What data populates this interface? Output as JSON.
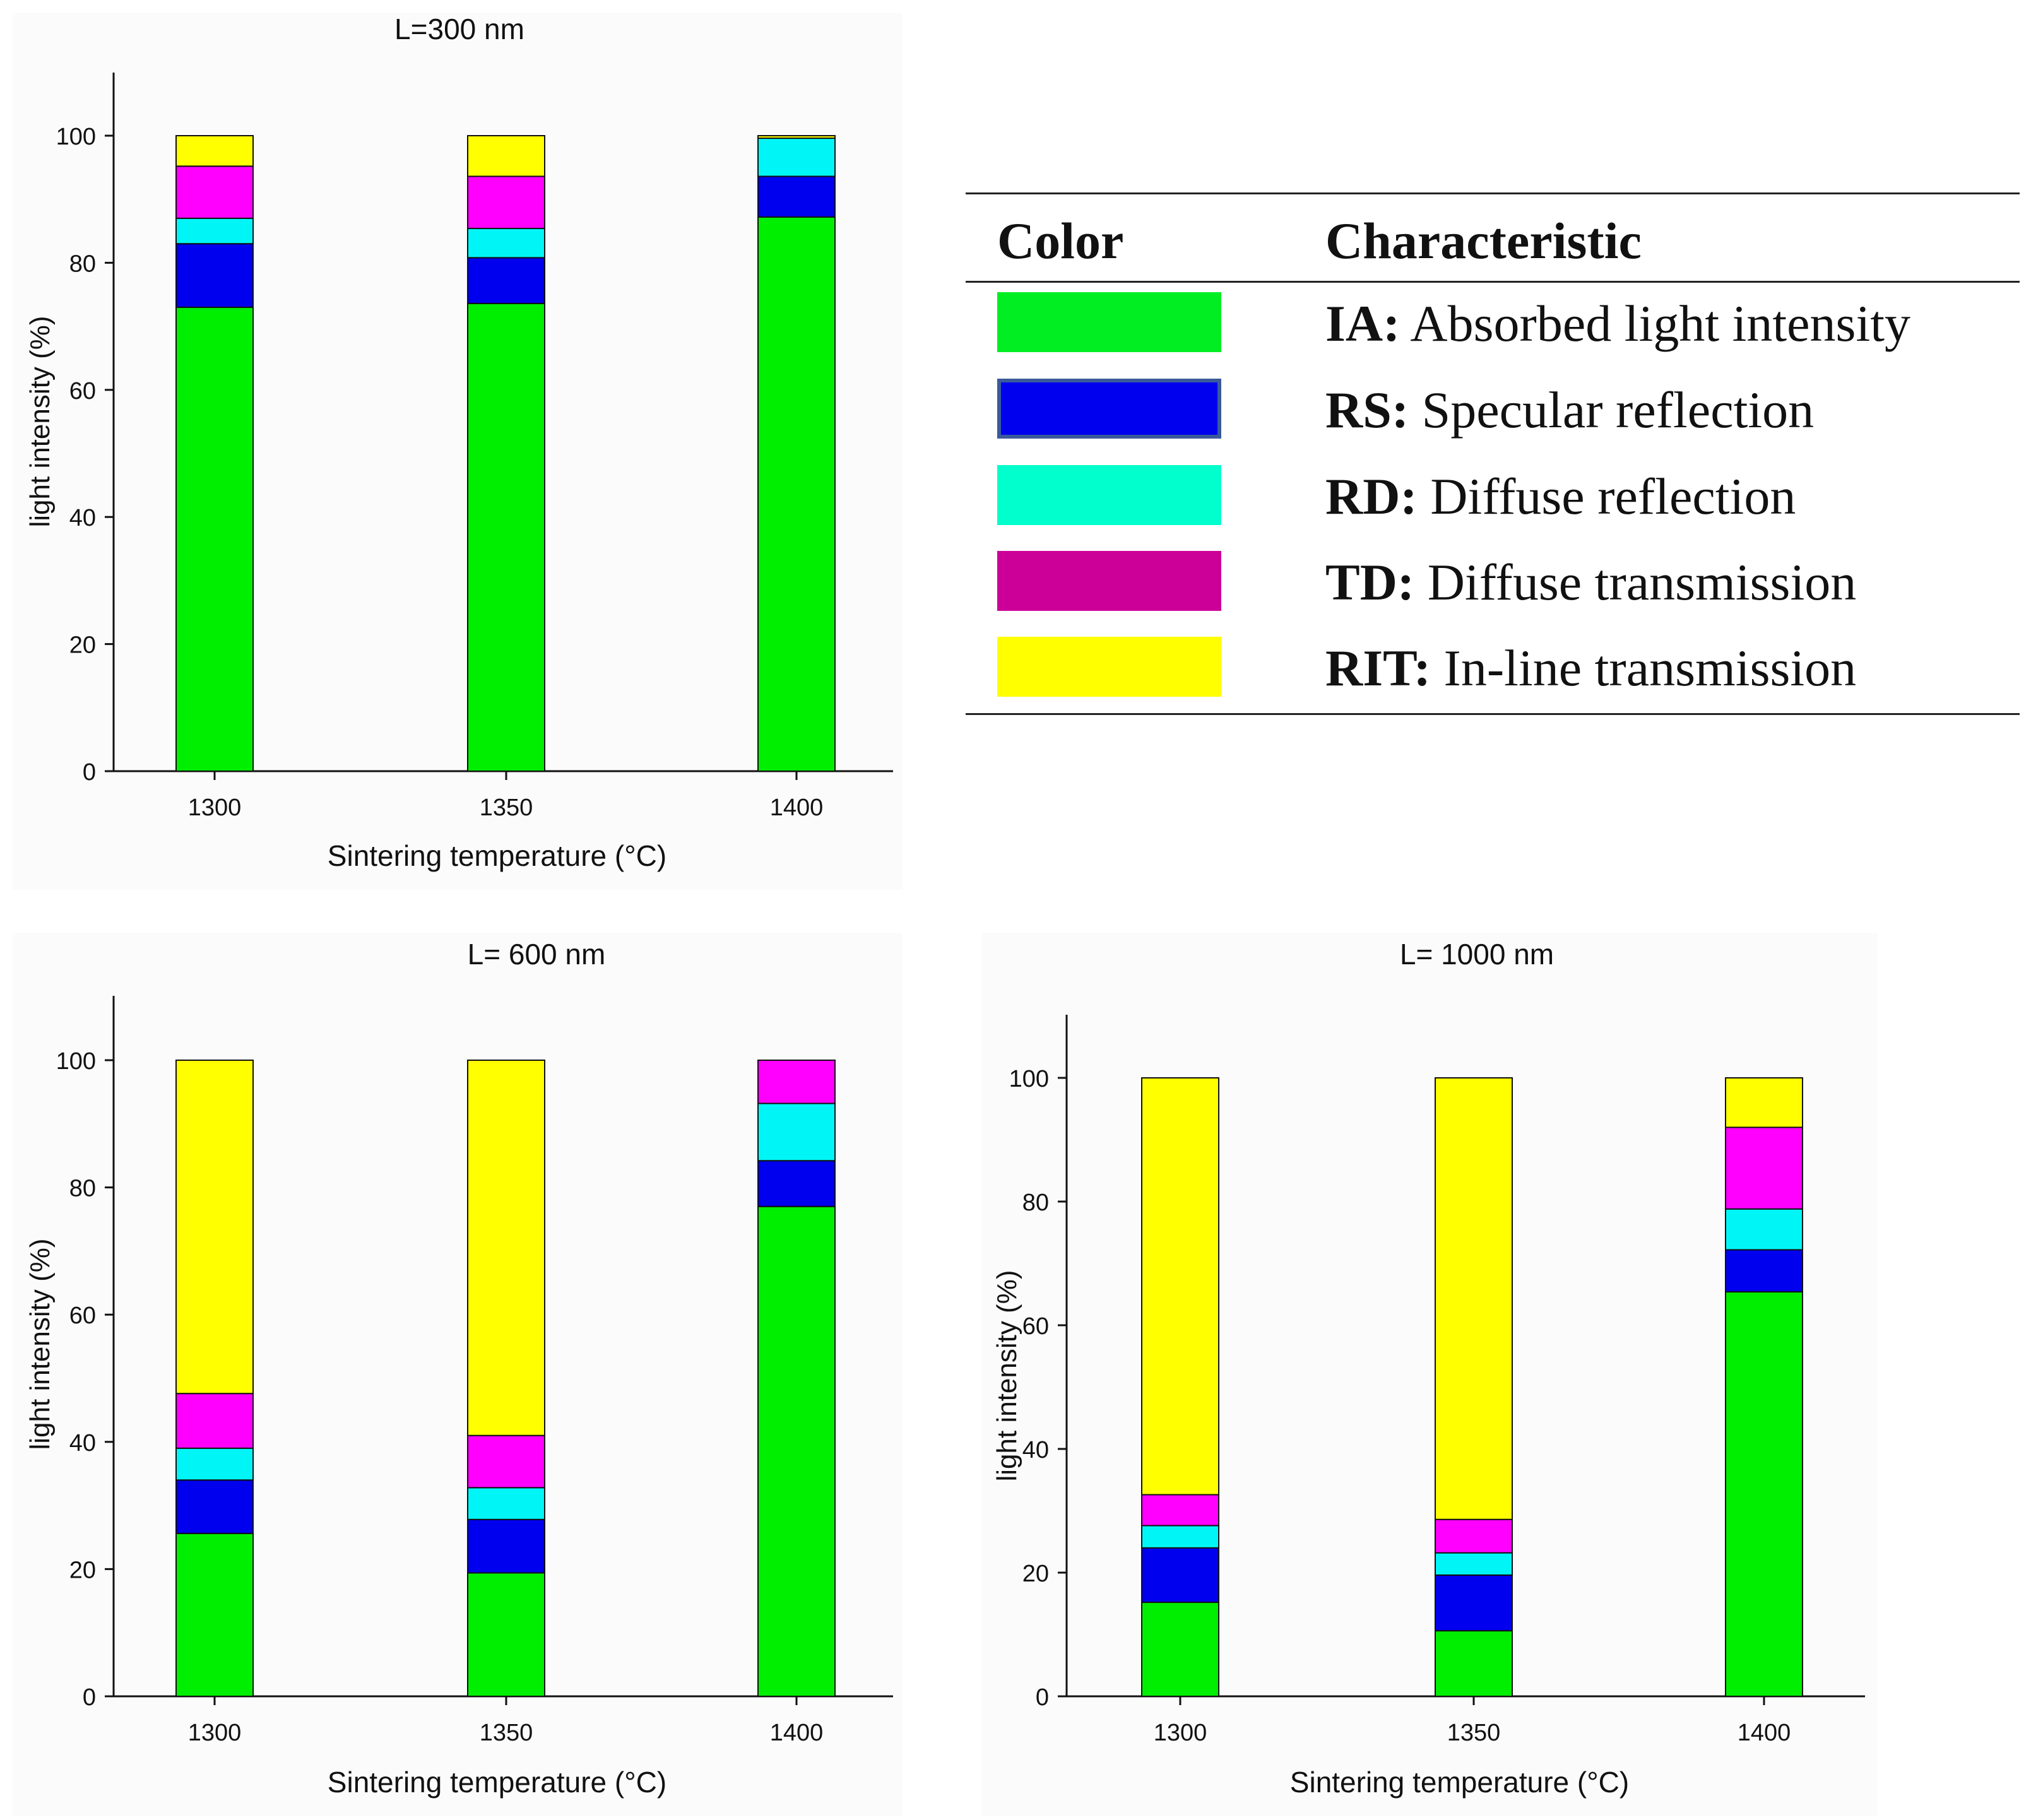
{
  "chart_data": [
    {
      "type": "bar",
      "stacked": true,
      "title": "L=300 nm",
      "xlabel": "Sintering temperature (°C)",
      "ylabel": "light intensity (%)",
      "categories": [
        "1300",
        "1350",
        "1400"
      ],
      "ylim": [
        0,
        110
      ],
      "yticks": [
        "0",
        "20",
        "40",
        "60",
        "80",
        "100"
      ],
      "series": [
        {
          "name": "IA",
          "values": [
            73,
            73.6,
            87.2
          ]
        },
        {
          "name": "RS",
          "values": [
            10,
            7.2,
            6.4
          ]
        },
        {
          "name": "RD",
          "values": [
            4,
            4.6,
            6
          ]
        },
        {
          "name": "TD",
          "values": [
            8.2,
            8.2,
            0
          ]
        },
        {
          "name": "RIT",
          "values": [
            4.8,
            6.4,
            0.4
          ]
        }
      ]
    },
    {
      "type": "bar",
      "stacked": true,
      "title": "L= 600 nm",
      "xlabel": "Sintering temperature (°C)",
      "ylabel": "light intensity (%)",
      "categories": [
        "1300",
        "1350",
        "1400"
      ],
      "ylim": [
        0,
        110
      ],
      "yticks": [
        "0",
        "20",
        "40",
        "60",
        "80",
        "100"
      ],
      "series": [
        {
          "name": "IA",
          "values": [
            25.6,
            19.4,
            77
          ]
        },
        {
          "name": "RS",
          "values": [
            8.4,
            8.4,
            7.2
          ]
        },
        {
          "name": "RD",
          "values": [
            5,
            5,
            9
          ]
        },
        {
          "name": "TD",
          "values": [
            8.6,
            8.2,
            6.8
          ]
        },
        {
          "name": "RIT",
          "values": [
            52.4,
            59,
            0
          ]
        }
      ]
    },
    {
      "type": "bar",
      "stacked": true,
      "title": "L= 1000 nm",
      "xlabel": "Sintering temperature (°C)",
      "ylabel": "light intensity (%)",
      "categories": [
        "1300",
        "1350",
        "1400"
      ],
      "ylim": [
        0,
        110
      ],
      "yticks": [
        "0",
        "20",
        "40",
        "60",
        "80",
        "100"
      ],
      "series": [
        {
          "name": "IA",
          "values": [
            15.2,
            10.6,
            65.4
          ]
        },
        {
          "name": "RS",
          "values": [
            8.8,
            9,
            6.8
          ]
        },
        {
          "name": "RD",
          "values": [
            3.6,
            3.6,
            6.6
          ]
        },
        {
          "name": "TD",
          "values": [
            5,
            5.4,
            13.2
          ]
        },
        {
          "name": "RIT",
          "values": [
            67.4,
            71.4,
            8
          ]
        }
      ]
    }
  ],
  "colors": {
    "IA": "#00ee00",
    "RS": "#0000ee",
    "RD": "#00f6f6",
    "TD": "#ff00ff",
    "RIT": "#ffff00"
  },
  "legend": {
    "header_color": "Color",
    "header_characteristic": "Characteristic",
    "items": [
      {
        "code": "IA:",
        "text": "Absorbed light intensity",
        "color": "#00ee22",
        "border": "#00ee22"
      },
      {
        "code": "RS:",
        "text": "Specular reflection",
        "color": "#0000ee",
        "border": "#3a5a9a"
      },
      {
        "code": "RD:",
        "text": "Diffuse reflection",
        "color": "#00ffcc",
        "border": "#00ffcc"
      },
      {
        "code": "TD:",
        "text": "Diffuse transmission",
        "color": "#cc0099",
        "border": "#cc0099"
      },
      {
        "code": "RIT:",
        "text": "In-line transmission",
        "color": "#ffff00",
        "border": "#ffff00"
      }
    ]
  }
}
